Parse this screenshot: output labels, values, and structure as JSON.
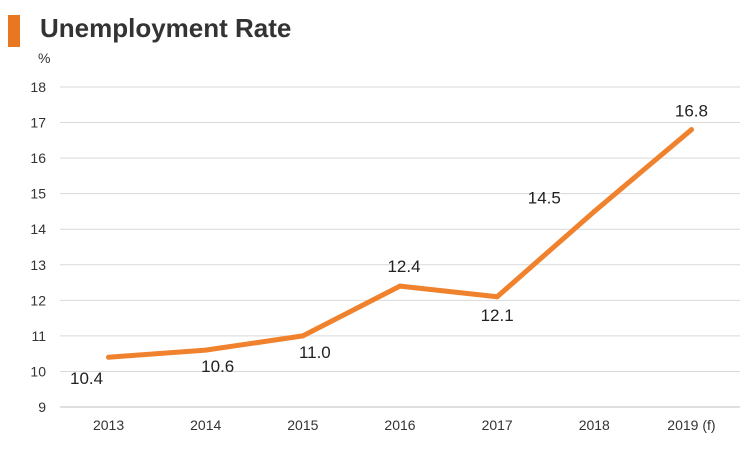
{
  "header": {
    "title": "Unemployment Rate",
    "accent_color": "#e87722"
  },
  "chart_data": {
    "type": "line",
    "title": "Unemployment Rate",
    "ylabel": "%",
    "xlabel": "",
    "categories": [
      "2013",
      "2014",
      "2015",
      "2016",
      "2017",
      "2018",
      "2019 (f)"
    ],
    "series": [
      {
        "values": [
          10.4,
          10.6,
          11.0,
          12.4,
          12.1,
          14.5,
          16.8
        ],
        "data_labels": [
          "10.4",
          "10.6",
          "11.0",
          "12.4",
          "12.1",
          "14.5",
          "16.8"
        ],
        "color": "#f0822e"
      }
    ],
    "ylim": [
      9,
      18
    ],
    "yticks": [
      9,
      10,
      11,
      12,
      13,
      14,
      15,
      16,
      17,
      18
    ],
    "grid": true,
    "legend": "none"
  }
}
